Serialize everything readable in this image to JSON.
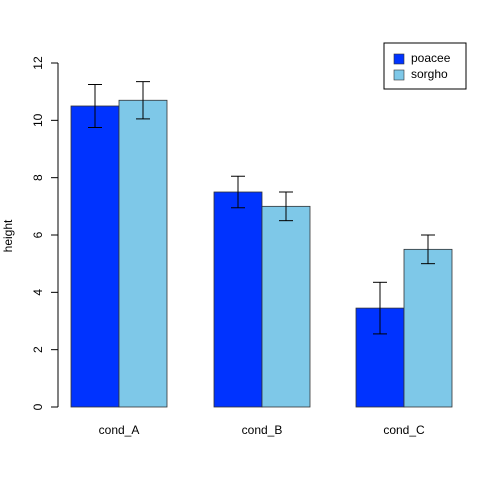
{
  "chart_data": {
    "type": "bar",
    "title": "",
    "xlabel": "",
    "ylabel": "height",
    "ylim": [
      0,
      12
    ],
    "yticks": [
      0,
      2,
      4,
      6,
      8,
      10,
      12
    ],
    "categories": [
      "cond_A",
      "cond_B",
      "cond_C"
    ],
    "series": [
      {
        "name": "poacee",
        "color": "#0033FF",
        "values": [
          10.5,
          7.5,
          3.45
        ],
        "error_low": [
          9.75,
          6.95,
          2.55
        ],
        "error_high": [
          11.25,
          8.05,
          4.35
        ]
      },
      {
        "name": "sorgho",
        "color": "#7EC8E8",
        "values": [
          10.7,
          7.0,
          5.5
        ],
        "error_low": [
          10.05,
          6.5,
          5.0
        ],
        "error_high": [
          11.35,
          7.5,
          6.0
        ]
      }
    ],
    "legend": {
      "position": "top-right",
      "entries": [
        "poacee",
        "sorgho"
      ]
    },
    "grid": false
  }
}
